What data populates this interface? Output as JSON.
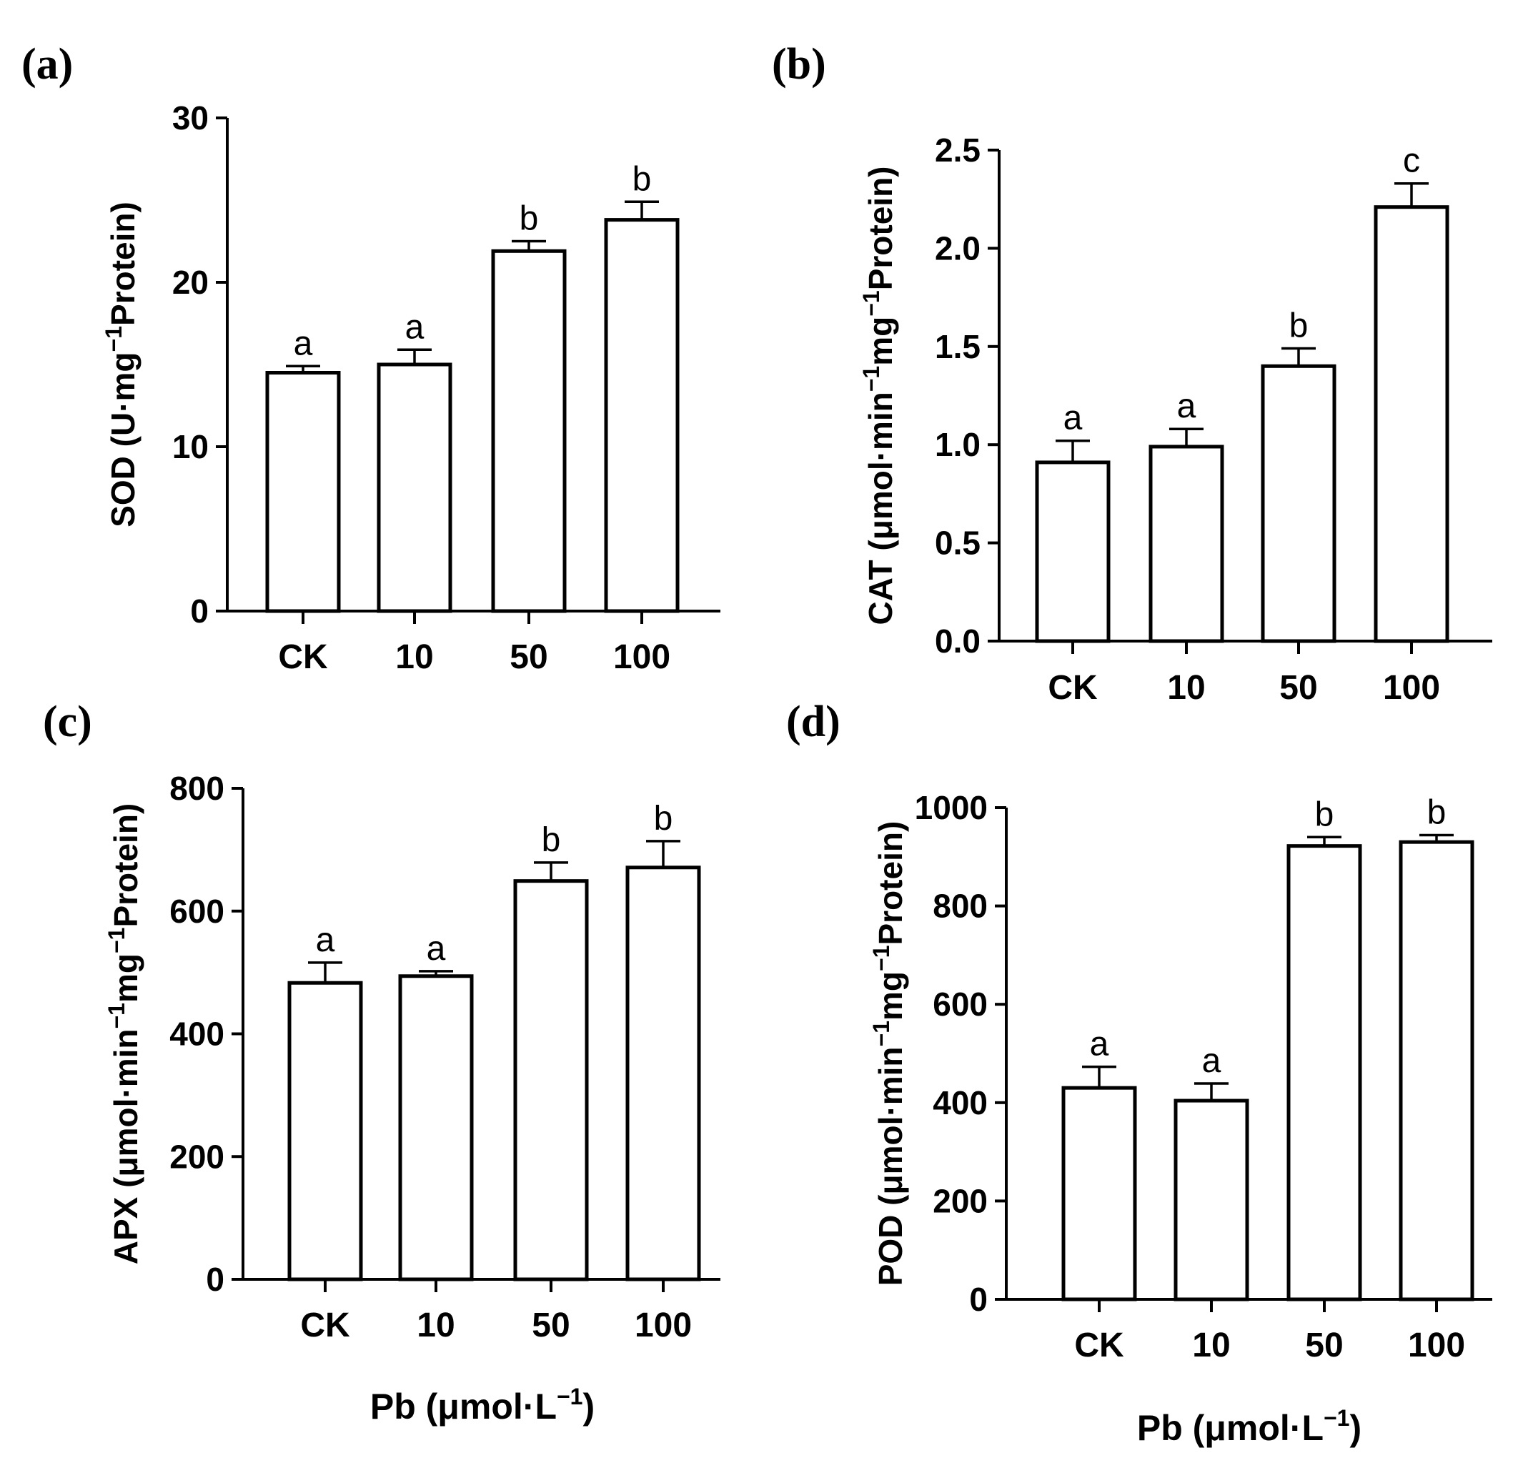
{
  "chart_data": [
    {
      "type": "bar",
      "panel": "(a)",
      "title": "",
      "ylabel": {
        "main": "SOD (U·mg",
        "sup": "−1",
        "tail": "Protein)"
      },
      "xlabel": "",
      "categories": [
        "CK",
        "10",
        "50",
        "100"
      ],
      "values": [
        14.5,
        15.0,
        21.9,
        23.8
      ],
      "errors": [
        0.4,
        0.9,
        0.6,
        1.1
      ],
      "significance": [
        "a",
        "a",
        "b",
        "b"
      ],
      "ylim": [
        0,
        30
      ],
      "yticks": [
        0,
        10,
        20,
        30
      ],
      "ytick_labels": [
        "0",
        "10",
        "20",
        "30"
      ]
    },
    {
      "type": "bar",
      "panel": "(b)",
      "title": "",
      "ylabel": {
        "main": "CAT (μmol·min",
        "sup": "−1",
        "mid": "mg",
        "sup2": "−1",
        "tail": "Protein)"
      },
      "xlabel": "",
      "categories": [
        "CK",
        "10",
        "50",
        "100"
      ],
      "values": [
        0.91,
        0.99,
        1.4,
        2.21
      ],
      "errors": [
        0.11,
        0.09,
        0.09,
        0.12
      ],
      "significance": [
        "a",
        "a",
        "b",
        "c"
      ],
      "ylim": [
        0,
        2.5
      ],
      "yticks": [
        0,
        0.5,
        1.0,
        1.5,
        2.0,
        2.5
      ],
      "ytick_labels": [
        "0.0",
        "0.5",
        "1.0",
        "1.5",
        "2.0",
        "2.5"
      ]
    },
    {
      "type": "bar",
      "panel": "(c)",
      "title": "",
      "ylabel": {
        "main": "APX (μmol·min",
        "sup": "−1",
        "mid": "mg",
        "sup2": "−1",
        "tail": "Protein)"
      },
      "xlabel": {
        "main": "Pb (μmol·L",
        "sup": "−1",
        "tail": ")"
      },
      "categories": [
        "CK",
        "10",
        "50",
        "100"
      ],
      "values": [
        483,
        494,
        649,
        671
      ],
      "errors": [
        33,
        8,
        30,
        43
      ],
      "significance": [
        "a",
        "a",
        "b",
        "b"
      ],
      "ylim": [
        0,
        800
      ],
      "yticks": [
        0,
        200,
        400,
        600,
        800
      ],
      "ytick_labels": [
        "0",
        "200",
        "400",
        "600",
        "800"
      ]
    },
    {
      "type": "bar",
      "panel": "(d)",
      "title": "",
      "ylabel": {
        "main": "POD (μmol·min",
        "sup": "−1",
        "mid": "mg",
        "sup2": "−1",
        "tail": "Protein)"
      },
      "xlabel": {
        "main": "Pb (μmol·L",
        "sup": "−1",
        "tail": ")"
      },
      "categories": [
        "CK",
        "10",
        "50",
        "100"
      ],
      "values": [
        430,
        404,
        922,
        930
      ],
      "errors": [
        43,
        35,
        18,
        14
      ],
      "significance": [
        "a",
        "a",
        "b",
        "b"
      ],
      "ylim": [
        0,
        1000
      ],
      "yticks": [
        0,
        200,
        400,
        600,
        800,
        1000
      ],
      "ytick_labels": [
        "0",
        "200",
        "400",
        "600",
        "800",
        "1000"
      ]
    }
  ]
}
